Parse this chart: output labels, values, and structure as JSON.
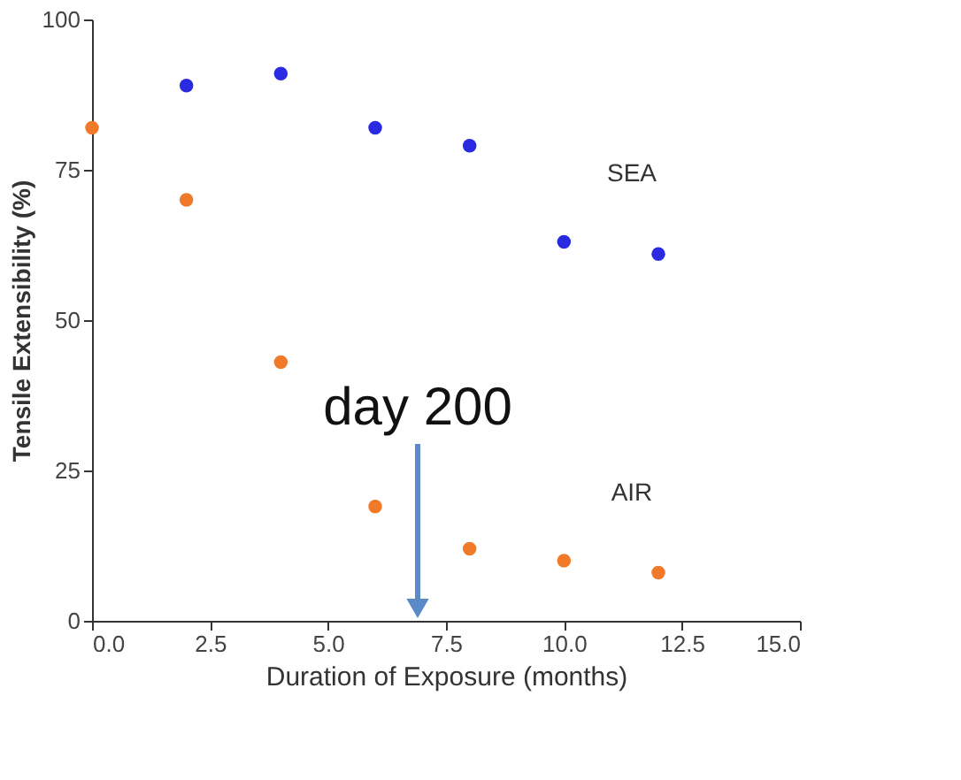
{
  "chart_data": {
    "type": "scatter",
    "xlabel": "Duration of Exposure (months)",
    "ylabel": "Tensile Extensibility (%)",
    "series": [
      {
        "name": "SEA",
        "color": "#2a2ae0",
        "x": [
          2,
          4,
          6,
          8,
          10,
          12
        ],
        "values": [
          89,
          91,
          82,
          79,
          63,
          61
        ]
      },
      {
        "name": "AIR",
        "color": "#f07a2a",
        "x": [
          0,
          2,
          4,
          6,
          8,
          10,
          12
        ],
        "values": [
          82,
          70,
          43,
          19,
          12,
          10,
          8
        ]
      }
    ],
    "xlim": [
      0,
      15
    ],
    "ylim": [
      0,
      100
    ],
    "xticks": [
      {
        "value": 0,
        "label": "0.0"
      },
      {
        "value": 2.5,
        "label": "2.5"
      },
      {
        "value": 5,
        "label": "5.0"
      },
      {
        "value": 7.5,
        "label": "7.5"
      },
      {
        "value": 10,
        "label": "10.0"
      },
      {
        "value": 12.5,
        "label": "12.5"
      },
      {
        "value": 15,
        "label": "15.0"
      }
    ],
    "yticks": [
      0,
      25,
      50,
      75,
      100
    ],
    "annotations": [
      "day 200"
    ],
    "grid": false,
    "marker": "circle"
  }
}
